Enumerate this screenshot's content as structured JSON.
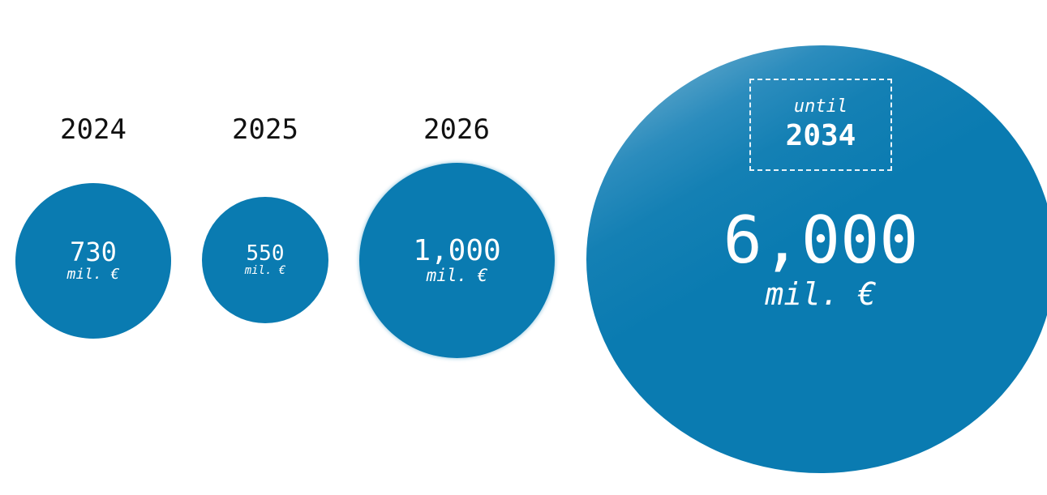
{
  "chart_data": {
    "type": "bubble",
    "categories": [
      "2024",
      "2025",
      "2026",
      "2034"
    ],
    "values": [
      730,
      550,
      1000,
      6000
    ],
    "value_labels": [
      "730",
      "550",
      "1,000",
      "6,000"
    ],
    "unit": "mil. €",
    "highlight": {
      "prefix": "until",
      "year": "2034"
    },
    "bubble_color": "#0a7bb1"
  }
}
